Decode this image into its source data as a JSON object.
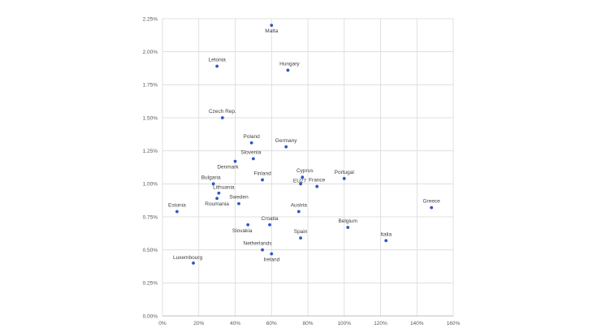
{
  "chart_data": {
    "type": "scatter",
    "title": "",
    "xlabel": "",
    "ylabel": "",
    "xlim": [
      0,
      1.6
    ],
    "ylim": [
      0,
      0.0225
    ],
    "x_ticks": [
      0,
      0.2,
      0.4,
      0.6,
      0.8,
      1.0,
      1.2,
      1.4,
      1.6
    ],
    "x_tick_labels": [
      "0%",
      "20%",
      "40%",
      "60%",
      "80%",
      "100%",
      "120%",
      "140%",
      "160%"
    ],
    "y_ticks": [
      0,
      0.0025,
      0.005,
      0.0075,
      0.01,
      0.0125,
      0.015,
      0.0175,
      0.02,
      0.0225
    ],
    "y_tick_labels": [
      "0.00%",
      "0.25%",
      "0.50%",
      "0.75%",
      "1.00%",
      "1.25%",
      "1.50%",
      "1.75%",
      "2.00%",
      "2.25%"
    ],
    "grid": true,
    "legend": "none",
    "marker_color": "#2f55c5",
    "grid_color": "#d9d9d9",
    "points": [
      {
        "label": "Malta",
        "x": 0.6,
        "y": 0.022
      },
      {
        "label": "Letonia",
        "x": 0.3,
        "y": 0.0189
      },
      {
        "label": "Hungary",
        "x": 0.69,
        "y": 0.0186
      },
      {
        "label": "Czech Rep.",
        "x": 0.33,
        "y": 0.015
      },
      {
        "label": "Poland",
        "x": 0.49,
        "y": 0.0131
      },
      {
        "label": "Germany",
        "x": 0.68,
        "y": 0.0128
      },
      {
        "label": "Slovenia",
        "x": 0.5,
        "y": 0.0119
      },
      {
        "label": "Denmark",
        "x": 0.4,
        "y": 0.0117
      },
      {
        "label": "Finland",
        "x": 0.55,
        "y": 0.0103
      },
      {
        "label": "Cyprus",
        "x": 0.77,
        "y": 0.0105
      },
      {
        "label": "EU27",
        "x": 0.76,
        "y": 0.01
      },
      {
        "label": "France",
        "x": 0.85,
        "y": 0.0098
      },
      {
        "label": "Portugal",
        "x": 1.0,
        "y": 0.0104
      },
      {
        "label": "Bulgaria",
        "x": 0.28,
        "y": 0.01
      },
      {
        "label": "Lithuania",
        "x": 0.31,
        "y": 0.0093
      },
      {
        "label": "Roumania",
        "x": 0.3,
        "y": 0.0089
      },
      {
        "label": "Sweden",
        "x": 0.42,
        "y": 0.0085
      },
      {
        "label": "Estonia",
        "x": 0.08,
        "y": 0.0079
      },
      {
        "label": "Austria",
        "x": 0.75,
        "y": 0.0079
      },
      {
        "label": "Greece",
        "x": 1.48,
        "y": 0.0082
      },
      {
        "label": "Croatia",
        "x": 0.59,
        "y": 0.0069
      },
      {
        "label": "Slovakia",
        "x": 0.47,
        "y": 0.0069
      },
      {
        "label": "Belgium",
        "x": 1.02,
        "y": 0.0067
      },
      {
        "label": "Spain",
        "x": 0.76,
        "y": 0.0059
      },
      {
        "label": "Italia",
        "x": 1.23,
        "y": 0.0057
      },
      {
        "label": "Netherlands",
        "x": 0.55,
        "y": 0.005
      },
      {
        "label": "Ireland",
        "x": 0.6,
        "y": 0.0047
      },
      {
        "label": "Luxembourg",
        "x": 0.17,
        "y": 0.004
      }
    ]
  }
}
